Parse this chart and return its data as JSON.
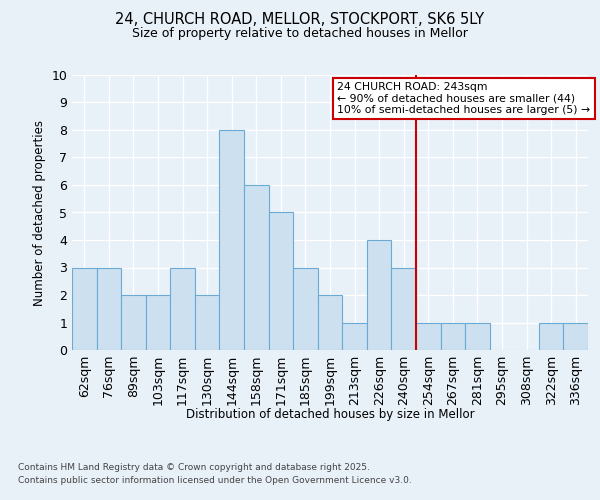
{
  "title_line1": "24, CHURCH ROAD, MELLOR, STOCKPORT, SK6 5LY",
  "title_line2": "Size of property relative to detached houses in Mellor",
  "xlabel": "Distribution of detached houses by size in Mellor",
  "ylabel": "Number of detached properties",
  "categories": [
    "62sqm",
    "76sqm",
    "89sqm",
    "103sqm",
    "117sqm",
    "130sqm",
    "144sqm",
    "158sqm",
    "171sqm",
    "185sqm",
    "199sqm",
    "213sqm",
    "226sqm",
    "240sqm",
    "254sqm",
    "267sqm",
    "281sqm",
    "295sqm",
    "308sqm",
    "322sqm",
    "336sqm"
  ],
  "values": [
    3,
    3,
    2,
    2,
    3,
    2,
    8,
    6,
    5,
    3,
    2,
    1,
    4,
    3,
    1,
    1,
    1,
    0,
    0,
    1,
    1
  ],
  "bar_color": "#cce0f0",
  "bar_edge_color": "#6aaad4",
  "vline_x_index": 13,
  "vline_color": "#cc0000",
  "annotation_title": "24 CHURCH ROAD: 243sqm",
  "annotation_line1": "← 90% of detached houses are smaller (44)",
  "annotation_line2": "10% of semi-detached houses are larger (5) →",
  "annotation_box_color": "#cc0000",
  "ylim": [
    0,
    10
  ],
  "yticks": [
    0,
    1,
    2,
    3,
    4,
    5,
    6,
    7,
    8,
    9,
    10
  ],
  "footer_line1": "Contains HM Land Registry data © Crown copyright and database right 2025.",
  "footer_line2": "Contains public sector information licensed under the Open Government Licence v3.0.",
  "background_color": "#e8f0f8",
  "grid_color": "#d0dcea"
}
